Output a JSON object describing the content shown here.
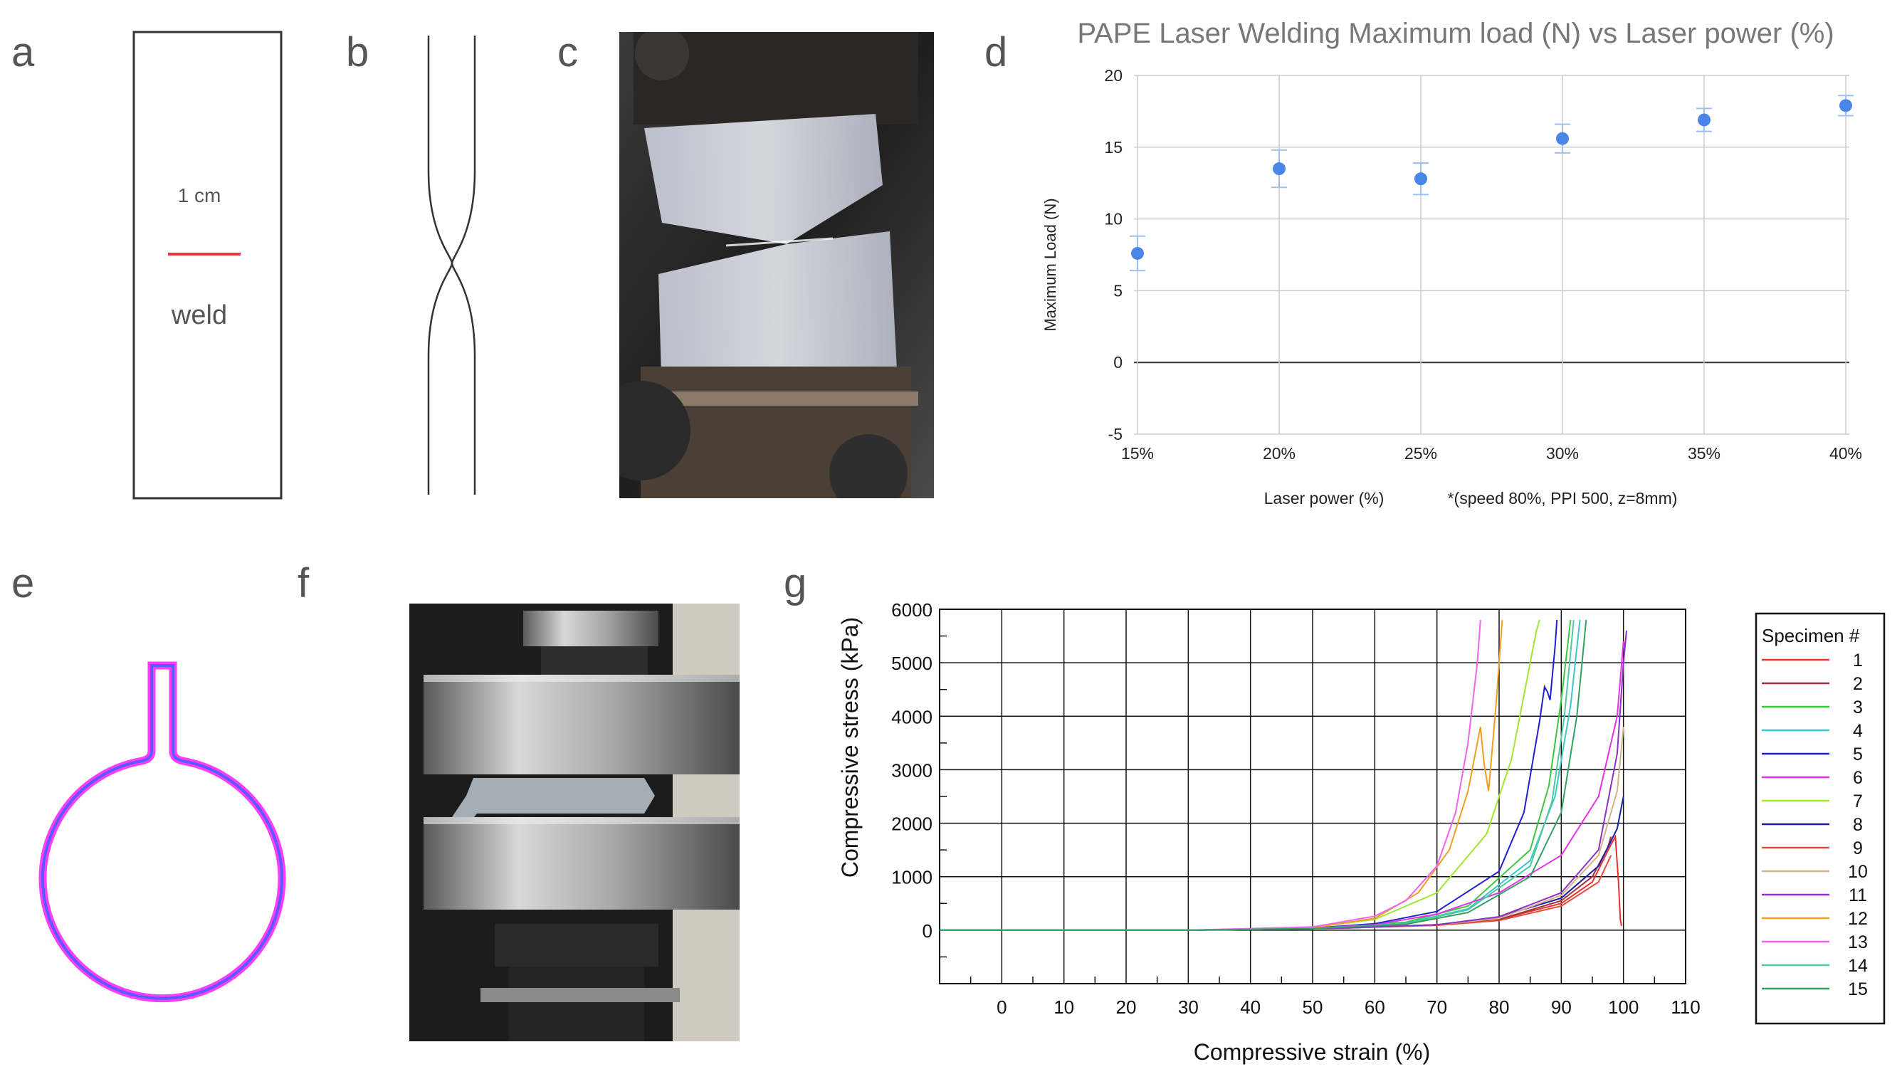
{
  "panel_labels": {
    "a": "a",
    "b": "b",
    "c": "c",
    "d": "d",
    "e": "e",
    "f": "f",
    "g": "g"
  },
  "panel_a": {
    "scale_label": "1 cm",
    "weld_label": "weld",
    "weld_color": "#e8373b"
  },
  "panel_c": {
    "photo": "weld-tensile-specimen-photo"
  },
  "panel_f": {
    "photo": "compression-test-photo"
  },
  "panel_e": {
    "outline_colors": [
      "#ff3bff",
      "#5a5aff"
    ]
  },
  "chart_data": [
    {
      "id": "d",
      "type": "scatter",
      "title": "PAPE Laser Welding Maximum load (N) vs Laser power (%)",
      "xlabel": "Laser power (%)",
      "note": "*(speed 80%, PPI 500, z=8mm)",
      "ylabel": "Maximum Load (N)",
      "categories": [
        "15%",
        "20%",
        "25%",
        "30%",
        "35%",
        "40%"
      ],
      "values": [
        7.6,
        13.5,
        12.8,
        15.6,
        16.9,
        17.9
      ],
      "error": [
        1.2,
        1.3,
        1.1,
        1.0,
        0.8,
        0.7
      ],
      "ylim": [
        -5,
        20
      ],
      "yticks": [
        -5,
        0,
        5,
        10,
        15,
        20
      ],
      "grid": true,
      "color": "#4a86e8"
    },
    {
      "id": "g",
      "type": "line",
      "xlabel": "Compressive strain (%)",
      "ylabel": "Compressive stress (kPa)",
      "xlim": [
        -10,
        110
      ],
      "xticks": [
        0,
        10,
        20,
        30,
        40,
        50,
        60,
        70,
        80,
        90,
        100,
        110
      ],
      "ylim": [
        -1000,
        6000
      ],
      "yticks": [
        0,
        1000,
        2000,
        3000,
        4000,
        5000,
        6000
      ],
      "grid": true,
      "legend_title": "Specimen #",
      "legend_position": "right",
      "series": [
        {
          "name": "1",
          "color": "#e8322f",
          "points": [
            [
              -10,
              0
            ],
            [
              30,
              0
            ],
            [
              55,
              40
            ],
            [
              70,
              100
            ],
            [
              80,
              200
            ],
            [
              90,
              500
            ],
            [
              95,
              900
            ],
            [
              98,
              1600
            ],
            [
              98.7,
              1750
            ],
            [
              99.2,
              900
            ],
            [
              99.5,
              200
            ],
            [
              99.7,
              80
            ]
          ]
        },
        {
          "name": "2",
          "color": "#a0323c",
          "points": [
            [
              -10,
              0
            ],
            [
              30,
              0
            ],
            [
              55,
              40
            ],
            [
              70,
              100
            ],
            [
              80,
              200
            ],
            [
              90,
              550
            ],
            [
              95,
              1000
            ],
            [
              97.5,
              1550
            ],
            [
              98,
              1750
            ]
          ]
        },
        {
          "name": "3",
          "color": "#3cc83c",
          "points": [
            [
              -10,
              0
            ],
            [
              30,
              0
            ],
            [
              50,
              30
            ],
            [
              65,
              150
            ],
            [
              75,
              450
            ],
            [
              85,
              1500
            ],
            [
              88,
              2700
            ],
            [
              90,
              4300
            ],
            [
              91.5,
              5800
            ]
          ]
        },
        {
          "name": "4",
          "color": "#3cc8c8",
          "points": [
            [
              -10,
              0
            ],
            [
              30,
              0
            ],
            [
              50,
              30
            ],
            [
              65,
              130
            ],
            [
              75,
              400
            ],
            [
              85,
              1300
            ],
            [
              89,
              2500
            ],
            [
              91.5,
              4200
            ],
            [
              93,
              5800
            ]
          ]
        },
        {
          "name": "5",
          "color": "#1e1ed2",
          "points": [
            [
              -10,
              0
            ],
            [
              30,
              0
            ],
            [
              50,
              40
            ],
            [
              60,
              120
            ],
            [
              70,
              350
            ],
            [
              80,
              1100
            ],
            [
              84,
              2200
            ],
            [
              86.5,
              3900
            ],
            [
              87.3,
              4550
            ],
            [
              87.8,
              4450
            ],
            [
              88.2,
              4300
            ],
            [
              89,
              5300
            ],
            [
              89.3,
              5800
            ]
          ]
        },
        {
          "name": "6",
          "color": "#e632e6",
          "points": [
            [
              -10,
              0
            ],
            [
              30,
              0
            ],
            [
              50,
              40
            ],
            [
              60,
              100
            ],
            [
              70,
              300
            ],
            [
              80,
              700
            ],
            [
              90,
              1400
            ],
            [
              96,
              2500
            ],
            [
              99,
              4000
            ],
            [
              100,
              5400
            ],
            [
              100.3,
              5300
            ]
          ]
        },
        {
          "name": "7",
          "color": "#a0e632",
          "points": [
            [
              -10,
              0
            ],
            [
              30,
              0
            ],
            [
              50,
              50
            ],
            [
              60,
              200
            ],
            [
              70,
              700
            ],
            [
              78,
              1800
            ],
            [
              82,
              3200
            ],
            [
              85,
              5000
            ],
            [
              86,
              5600
            ],
            [
              86.5,
              5800
            ]
          ]
        },
        {
          "name": "8",
          "color": "#1e1ea0",
          "points": [
            [
              -10,
              0
            ],
            [
              30,
              0
            ],
            [
              55,
              40
            ],
            [
              70,
              100
            ],
            [
              80,
              250
            ],
            [
              90,
              600
            ],
            [
              96,
              1200
            ],
            [
              99,
              1900
            ],
            [
              100,
              2500
            ]
          ]
        },
        {
          "name": "9",
          "color": "#e84a3a",
          "points": [
            [
              -10,
              0
            ],
            [
              30,
              0
            ],
            [
              55,
              40
            ],
            [
              70,
              90
            ],
            [
              80,
              180
            ],
            [
              90,
              450
            ],
            [
              96,
              900
            ],
            [
              98,
              1400
            ]
          ]
        },
        {
          "name": "10",
          "color": "#d2b48c",
          "points": [
            [
              -10,
              0
            ],
            [
              30,
              0
            ],
            [
              55,
              40
            ],
            [
              70,
              100
            ],
            [
              80,
              220
            ],
            [
              90,
              650
            ],
            [
              96,
              1400
            ],
            [
              99,
              2600
            ],
            [
              100,
              3800
            ]
          ]
        },
        {
          "name": "11",
          "color": "#8c32c8",
          "points": [
            [
              -10,
              0
            ],
            [
              30,
              0
            ],
            [
              55,
              40
            ],
            [
              70,
              100
            ],
            [
              80,
              250
            ],
            [
              90,
              700
            ],
            [
              96,
              1500
            ],
            [
              99,
              3300
            ],
            [
              100,
              5000
            ],
            [
              100.5,
              5600
            ]
          ]
        },
        {
          "name": "12",
          "color": "#f0a020",
          "points": [
            [
              -10,
              0
            ],
            [
              30,
              0
            ],
            [
              50,
              50
            ],
            [
              60,
              220
            ],
            [
              67,
              700
            ],
            [
              72,
              1500
            ],
            [
              75,
              2600
            ],
            [
              77,
              3800
            ],
            [
              77.6,
              3100
            ],
            [
              78.3,
              2600
            ],
            [
              79.5,
              4200
            ],
            [
              80.5,
              5800
            ]
          ]
        },
        {
          "name": "13",
          "color": "#f064f0",
          "points": [
            [
              -10,
              0
            ],
            [
              30,
              0
            ],
            [
              50,
              60
            ],
            [
              60,
              260
            ],
            [
              65,
              550
            ],
            [
              70,
              1200
            ],
            [
              73,
              2200
            ],
            [
              75,
              3500
            ],
            [
              76.5,
              5000
            ],
            [
              77,
              5800
            ]
          ]
        },
        {
          "name": "14",
          "color": "#50c8a0",
          "points": [
            [
              -10,
              0
            ],
            [
              30,
              0
            ],
            [
              50,
              30
            ],
            [
              65,
              120
            ],
            [
              75,
              380
            ],
            [
              85,
              1200
            ],
            [
              88.5,
              2400
            ],
            [
              90.5,
              4000
            ],
            [
              92,
              5800
            ]
          ]
        },
        {
          "name": "15",
          "color": "#32a064",
          "points": [
            [
              -10,
              0
            ],
            [
              30,
              0
            ],
            [
              50,
              30
            ],
            [
              65,
              110
            ],
            [
              75,
              330
            ],
            [
              85,
              1000
            ],
            [
              90,
              2200
            ],
            [
              92.5,
              4000
            ],
            [
              94,
              5800
            ]
          ]
        }
      ]
    }
  ]
}
